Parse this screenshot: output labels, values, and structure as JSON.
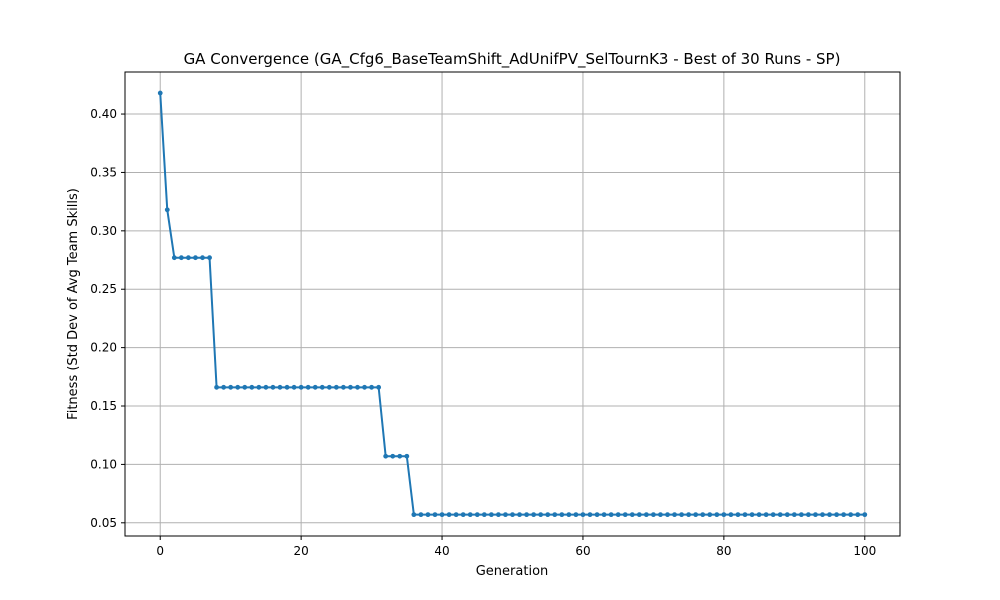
{
  "chart_data": {
    "type": "line",
    "title": "GA Convergence (GA_Cfg6_BaseTeamShift_AdUnifPV_SelTournK3 - Best of 30 Runs - SP)",
    "xlabel": "Generation",
    "ylabel": "Fitness (Std Dev of Avg Team Skills)",
    "xlim": [
      -5,
      105
    ],
    "ylim": [
      0.0387,
      0.436
    ],
    "xticks": [
      0,
      20,
      40,
      60,
      80,
      100
    ],
    "xtick_labels": [
      "0",
      "20",
      "40",
      "60",
      "80",
      "100"
    ],
    "yticks": [
      0.05,
      0.1,
      0.15,
      0.2,
      0.25,
      0.3,
      0.35,
      0.4
    ],
    "ytick_labels": [
      "0.05",
      "0.10",
      "0.15",
      "0.20",
      "0.25",
      "0.30",
      "0.35",
      "0.40"
    ],
    "grid": true,
    "line_color": "#1f77b4",
    "marker": "circle",
    "segments": [
      {
        "from": 0,
        "to": 0,
        "value": 0.418
      },
      {
        "from": 1,
        "to": 1,
        "value": 0.318
      },
      {
        "from": 2,
        "to": 7,
        "value": 0.277
      },
      {
        "from": 8,
        "to": 31,
        "value": 0.166
      },
      {
        "from": 32,
        "to": 35,
        "value": 0.107
      },
      {
        "from": 36,
        "to": 100,
        "value": 0.057
      }
    ]
  }
}
